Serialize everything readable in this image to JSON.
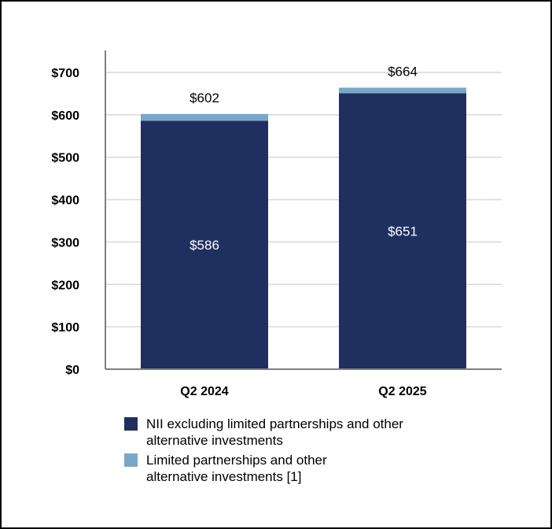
{
  "chart_data": {
    "type": "bar",
    "stacked": true,
    "categories": [
      "Q2 2024",
      "Q2 2025"
    ],
    "series": [
      {
        "name": "NII excluding limited partnerships and other alternative investments",
        "values": [
          586,
          651
        ],
        "color": "#1f3060",
        "value_labels": [
          "$586",
          "$651"
        ]
      },
      {
        "name": "Limited partnerships and other alternative investments [1]",
        "values": [
          16,
          13
        ],
        "color": "#7aa7c7"
      }
    ],
    "total_labels": [
      "$602",
      "$664"
    ],
    "totals": [
      602,
      664
    ],
    "ylim": [
      0,
      700
    ],
    "yticks": [
      0,
      100,
      200,
      300,
      400,
      500,
      600,
      700
    ],
    "ytick_labels": [
      "$0",
      "$100",
      "$200",
      "$300",
      "$400",
      "$500",
      "$600",
      "$700"
    ],
    "grid": true,
    "legend_position": "bottom"
  },
  "legend": {
    "items": [
      {
        "line1": "NII excluding limited partnerships and other",
        "line2": "alternative investments",
        "color": "#1f3060"
      },
      {
        "line1": "Limited partnerships and other",
        "line2": "alternative investments [1]",
        "color": "#7aa7c7"
      }
    ]
  }
}
